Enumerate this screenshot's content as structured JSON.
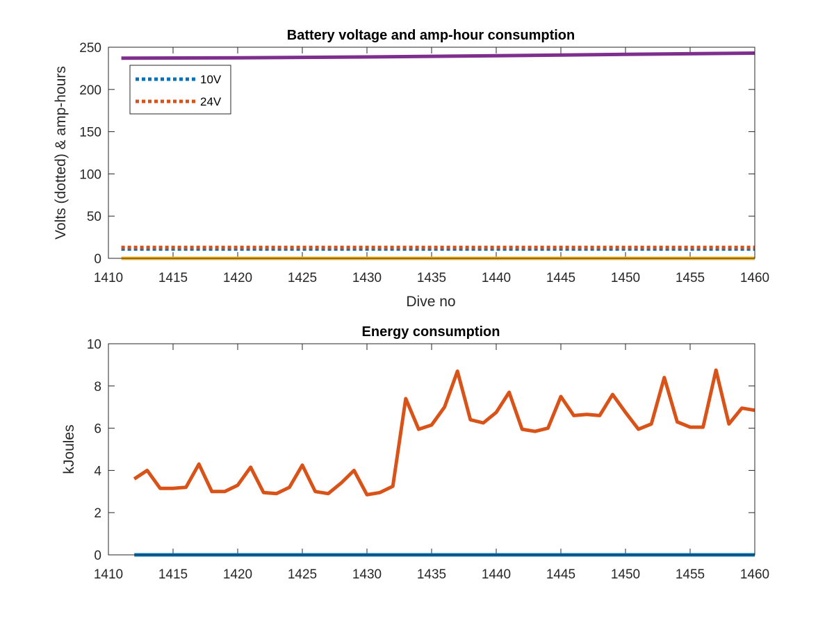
{
  "chart_data": [
    {
      "type": "line",
      "title": "Battery voltage and amp-hour consumption",
      "xlabel": "Dive no",
      "ylabel": "Volts (dotted) & amp-hours",
      "xlim": [
        1410,
        1460
      ],
      "ylim": [
        0,
        250
      ],
      "xticks": [
        1410,
        1415,
        1420,
        1425,
        1430,
        1435,
        1440,
        1445,
        1450,
        1455,
        1460
      ],
      "yticks": [
        0,
        50,
        100,
        150,
        200,
        250
      ],
      "grid": false,
      "legend_position": "top-left",
      "series": [
        {
          "name": "10V",
          "style": "dotted",
          "color": "#0072bd",
          "x": [
            1411,
            1460
          ],
          "y": [
            11,
            11
          ]
        },
        {
          "name": "24V",
          "style": "dotted",
          "color": "#d95319",
          "x": [
            1411,
            1460
          ],
          "y": [
            13,
            13
          ]
        },
        {
          "style": "solid",
          "color": "#edb120",
          "x": [
            1411,
            1460
          ],
          "y": [
            0,
            0
          ]
        },
        {
          "style": "solid",
          "color": "#7e2f8e",
          "x": [
            1411,
            1420,
            1430,
            1440,
            1450,
            1460
          ],
          "y": [
            237,
            237.5,
            238.5,
            240,
            241.5,
            243
          ]
        }
      ]
    },
    {
      "type": "line",
      "title": "Energy consumption",
      "xlabel": "",
      "ylabel": "kJoules",
      "xlim": [
        1410,
        1460
      ],
      "ylim": [
        0,
        10
      ],
      "xticks": [
        1410,
        1415,
        1420,
        1425,
        1430,
        1435,
        1440,
        1445,
        1450,
        1455,
        1460
      ],
      "yticks": [
        0,
        2,
        4,
        6,
        8,
        10
      ],
      "grid": false,
      "series": [
        {
          "style": "solid",
          "color": "#d95319",
          "x": [
            1412,
            1413,
            1414,
            1415,
            1416,
            1417,
            1418,
            1419,
            1420,
            1421,
            1422,
            1423,
            1424,
            1425,
            1426,
            1427,
            1428,
            1429,
            1430,
            1431,
            1432,
            1433,
            1434,
            1435,
            1436,
            1437,
            1438,
            1439,
            1440,
            1441,
            1442,
            1443,
            1444,
            1445,
            1446,
            1447,
            1448,
            1449,
            1450,
            1451,
            1452,
            1453,
            1454,
            1455,
            1456,
            1457,
            1458,
            1459,
            1460
          ],
          "y": [
            3.6,
            4.0,
            3.15,
            3.15,
            3.2,
            4.3,
            3.0,
            3.0,
            3.3,
            4.15,
            2.95,
            2.9,
            3.2,
            4.25,
            3.0,
            2.9,
            3.4,
            4.0,
            2.85,
            2.95,
            3.25,
            7.4,
            5.95,
            6.15,
            7.0,
            8.7,
            6.4,
            6.25,
            6.75,
            7.7,
            5.95,
            5.85,
            6.0,
            7.5,
            6.6,
            6.65,
            6.6,
            7.6,
            6.75,
            5.95,
            6.2,
            8.4,
            6.3,
            6.05,
            6.05,
            8.75,
            6.2,
            6.95,
            6.85
          ]
        },
        {
          "style": "solid",
          "color": "#0072bd",
          "x": [
            1412,
            1460
          ],
          "y": [
            0,
            0
          ]
        }
      ]
    }
  ]
}
